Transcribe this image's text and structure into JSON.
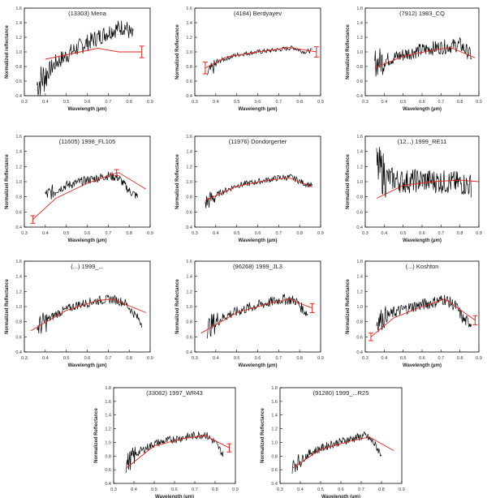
{
  "figure": {
    "ylabel_main": "Normalized Reflectance",
    "ylabel_alt": "Normalized reflectance",
    "xlabel": "Wavelength (µm)",
    "colors": {
      "spectrum": "#000000",
      "fit": "#e8261c",
      "frame": "#000000"
    }
  },
  "chart_data": [
    {
      "type": "line",
      "title": "(13303) Mena",
      "ylabel": "Normalized reflectance",
      "xlabel": "Wavelength (µm)",
      "xlim": [
        0.3,
        0.9
      ],
      "ylim": [
        0.4,
        1.6
      ],
      "xticks": [
        "0.3",
        "0.4",
        "0.5",
        "0.6",
        "0.7",
        "0.8",
        "0.9"
      ],
      "yticks": [
        "0.4",
        "0.6",
        "0.8",
        "1.0",
        "1.2",
        "1.4",
        "1.6"
      ],
      "spectrum": {
        "x0": 0.36,
        "x1": 0.82,
        "knots": [
          [
            0.36,
            0.55
          ],
          [
            0.45,
            0.85
          ],
          [
            0.55,
            1.05
          ],
          [
            0.65,
            1.2
          ],
          [
            0.72,
            1.3
          ],
          [
            0.78,
            1.35
          ],
          [
            0.82,
            1.2
          ]
        ],
        "noise": 0.12,
        "noise_blue": 0.25
      },
      "fit": [
        [
          0.4,
          0.9
        ],
        [
          0.65,
          1.05
        ],
        [
          0.75,
          1.0
        ],
        [
          0.86,
          1.0
        ]
      ],
      "error_bars": [
        {
          "x": 0.86,
          "y": 1.0,
          "err": 0.08
        }
      ]
    },
    {
      "type": "line",
      "title": "(4184) Berdyayev",
      "ylabel": "Normalized Reflectance",
      "xlabel": "Wavelength (µm)",
      "xlim": [
        0.3,
        0.9
      ],
      "ylim": [
        0.4,
        1.6
      ],
      "xticks": [
        "0.3",
        "0.4",
        "0.5",
        "0.6",
        "0.7",
        "0.8",
        "0.9"
      ],
      "yticks": [
        "0.4",
        "0.6",
        "0.8",
        "1.0",
        "1.2",
        "1.4",
        "1.6"
      ],
      "spectrum": {
        "x0": 0.36,
        "x1": 0.86,
        "knots": [
          [
            0.36,
            0.7
          ],
          [
            0.42,
            0.88
          ],
          [
            0.5,
            0.96
          ],
          [
            0.6,
            1.0
          ],
          [
            0.7,
            1.03
          ],
          [
            0.77,
            1.06
          ],
          [
            0.82,
            1.0
          ],
          [
            0.86,
            1.02
          ]
        ],
        "noise": 0.03,
        "noise_blue": 0.1
      },
      "fit": [
        [
          0.35,
          0.78
        ],
        [
          0.45,
          0.93
        ],
        [
          0.6,
          1.0
        ],
        [
          0.75,
          1.06
        ],
        [
          0.88,
          1.0
        ]
      ],
      "error_bars": [
        {
          "x": 0.35,
          "y": 0.78,
          "err": 0.08
        },
        {
          "x": 0.88,
          "y": 1.0,
          "err": 0.07
        }
      ]
    },
    {
      "type": "line",
      "title": "(7912) 1983_CQ",
      "ylabel": "Normalized Reflectance",
      "xlabel": "Wavelength (µm)",
      "xlim": [
        0.3,
        0.9
      ],
      "ylim": [
        0.4,
        1.6
      ],
      "xticks": [
        "0.3",
        "0.4",
        "0.5",
        "0.6",
        "0.7",
        "0.8",
        "0.9"
      ],
      "yticks": [
        "0.4",
        "0.6",
        "0.8",
        "1.0",
        "1.2",
        "1.4",
        "1.6"
      ],
      "spectrum": {
        "x0": 0.35,
        "x1": 0.86,
        "knots": [
          [
            0.35,
            0.85
          ],
          [
            0.45,
            0.92
          ],
          [
            0.55,
            1.0
          ],
          [
            0.65,
            1.05
          ],
          [
            0.75,
            1.08
          ],
          [
            0.8,
            1.1
          ],
          [
            0.86,
            0.95
          ]
        ],
        "noise": 0.1,
        "noise_blue": 0.2
      },
      "fit": [
        [
          0.35,
          0.78
        ],
        [
          0.5,
          0.94
        ],
        [
          0.65,
          1.02
        ],
        [
          0.75,
          1.06
        ],
        [
          0.88,
          0.92
        ]
      ],
      "error_bars": []
    },
    {
      "type": "line",
      "title": "(11605) 1998_FL105",
      "ylabel": "Normalized Reflectance",
      "xlabel": "Wavelength (µm)",
      "xlim": [
        0.3,
        0.9
      ],
      "ylim": [
        0.4,
        1.6
      ],
      "xticks": [
        "0.3",
        "0.4",
        "0.5",
        "0.6",
        "0.7",
        "0.8",
        "0.9"
      ],
      "yticks": [
        "0.4",
        "0.6",
        "0.8",
        "1.0",
        "1.2",
        "1.4",
        "1.6"
      ],
      "spectrum": {
        "x0": 0.4,
        "x1": 0.84,
        "knots": [
          [
            0.4,
            0.82
          ],
          [
            0.5,
            0.95
          ],
          [
            0.6,
            1.02
          ],
          [
            0.7,
            1.08
          ],
          [
            0.75,
            1.05
          ],
          [
            0.8,
            0.88
          ],
          [
            0.84,
            0.8
          ]
        ],
        "noise": 0.06,
        "noise_blue": 0.1
      },
      "fit": [
        [
          0.34,
          0.5
        ],
        [
          0.45,
          0.78
        ],
        [
          0.6,
          0.98
        ],
        [
          0.72,
          1.1
        ],
        [
          0.75,
          1.12
        ],
        [
          0.88,
          0.9
        ]
      ],
      "error_bars": [
        {
          "x": 0.34,
          "y": 0.5,
          "err": 0.05
        },
        {
          "x": 0.74,
          "y": 1.12,
          "err": 0.04
        }
      ]
    },
    {
      "type": "line",
      "title": "(11976) Dondorgerter",
      "ylabel": "Normalized Reflectance",
      "xlabel": "Wavelength (µm)",
      "xlim": [
        0.3,
        0.9
      ],
      "ylim": [
        0.4,
        1.6
      ],
      "xticks": [
        "0.3",
        "0.4",
        "0.5",
        "0.6",
        "0.7",
        "0.8",
        "0.9"
      ],
      "yticks": [
        "0.4",
        "0.6",
        "0.8",
        "1.0",
        "1.2",
        "1.4",
        "1.6"
      ],
      "spectrum": {
        "x0": 0.35,
        "x1": 0.86,
        "knots": [
          [
            0.35,
            0.72
          ],
          [
            0.42,
            0.85
          ],
          [
            0.5,
            0.95
          ],
          [
            0.6,
            1.0
          ],
          [
            0.7,
            1.05
          ],
          [
            0.76,
            1.06
          ],
          [
            0.82,
            0.98
          ],
          [
            0.86,
            0.95
          ]
        ],
        "noise": 0.04,
        "noise_blue": 0.12
      },
      "fit": [
        [
          0.35,
          0.75
        ],
        [
          0.5,
          0.94
        ],
        [
          0.65,
          1.02
        ],
        [
          0.75,
          1.05
        ],
        [
          0.86,
          0.93
        ]
      ],
      "error_bars": []
    },
    {
      "type": "line",
      "title": "(12...) 1999_RE11",
      "ylabel": "Normalized Reflectance",
      "xlabel": "Wavelength (µm)",
      "xlim": [
        0.3,
        0.9
      ],
      "ylim": [
        0.4,
        1.6
      ],
      "xticks": [
        "0.3",
        "0.4",
        "0.5",
        "0.6",
        "0.7",
        "0.8",
        "0.9"
      ],
      "yticks": [
        "0.4",
        "0.6",
        "0.8",
        "1.0",
        "1.2",
        "1.4",
        "1.6"
      ],
      "spectrum": {
        "x0": 0.36,
        "x1": 0.86,
        "knots": [
          [
            0.36,
            1.2
          ],
          [
            0.42,
            1.05
          ],
          [
            0.5,
            1.0
          ],
          [
            0.6,
            1.02
          ],
          [
            0.7,
            1.0
          ],
          [
            0.8,
            0.98
          ],
          [
            0.86,
            0.95
          ]
        ],
        "noise": 0.16,
        "noise_blue": 0.3
      },
      "fit": [
        [
          0.36,
          0.78
        ],
        [
          0.5,
          0.95
        ],
        [
          0.65,
          1.0
        ],
        [
          0.8,
          1.02
        ],
        [
          0.9,
          1.0
        ]
      ],
      "error_bars": []
    },
    {
      "type": "line",
      "title": "(...) 1999_...",
      "ylabel": "Normalized Reflectance",
      "xlabel": "Wavelength (µm)",
      "xlim": [
        0.3,
        0.9
      ],
      "ylim": [
        0.4,
        1.6
      ],
      "xticks": [
        "0.3",
        "0.4",
        "0.5",
        "0.6",
        "0.7",
        "0.8",
        "0.9"
      ],
      "yticks": [
        "0.4",
        "0.6",
        "0.8",
        "1.0",
        "1.2",
        "1.4",
        "1.6"
      ],
      "spectrum": {
        "x0": 0.36,
        "x1": 0.86,
        "knots": [
          [
            0.36,
            0.72
          ],
          [
            0.45,
            0.9
          ],
          [
            0.55,
            1.02
          ],
          [
            0.65,
            1.08
          ],
          [
            0.72,
            1.1
          ],
          [
            0.78,
            1.05
          ],
          [
            0.84,
            0.85
          ],
          [
            0.86,
            0.78
          ]
        ],
        "noise": 0.06,
        "noise_blue": 0.15
      },
      "fit": [
        [
          0.33,
          0.68
        ],
        [
          0.5,
          0.95
        ],
        [
          0.65,
          1.08
        ],
        [
          0.72,
          1.1
        ],
        [
          0.88,
          0.92
        ]
      ],
      "error_bars": []
    },
    {
      "type": "line",
      "title": "(96268) 1999_JL3",
      "ylabel": "Normalized Reflectance",
      "xlabel": "Wavelength (µm)",
      "xlim": [
        0.3,
        0.9
      ],
      "ylim": [
        0.4,
        1.6
      ],
      "xticks": [
        "0.3",
        "0.4",
        "0.5",
        "0.6",
        "0.7",
        "0.8",
        "0.9"
      ],
      "yticks": [
        "0.4",
        "0.6",
        "0.8",
        "1.0",
        "1.2",
        "1.4",
        "1.6"
      ],
      "spectrum": {
        "x0": 0.36,
        "x1": 0.84,
        "knots": [
          [
            0.36,
            0.72
          ],
          [
            0.45,
            0.88
          ],
          [
            0.55,
            0.98
          ],
          [
            0.65,
            1.05
          ],
          [
            0.72,
            1.1
          ],
          [
            0.78,
            1.08
          ],
          [
            0.82,
            0.95
          ],
          [
            0.84,
            0.9
          ]
        ],
        "noise": 0.07,
        "noise_blue": 0.15
      },
      "fit": [
        [
          0.33,
          0.65
        ],
        [
          0.5,
          0.92
        ],
        [
          0.65,
          1.04
        ],
        [
          0.75,
          1.1
        ],
        [
          0.86,
          0.98
        ]
      ],
      "error_bars": [
        {
          "x": 0.86,
          "y": 0.98,
          "err": 0.06
        }
      ]
    },
    {
      "type": "line",
      "title": "(...) Koshton",
      "ylabel": "Normalized Reflectance",
      "xlabel": "Wavelength (µm)",
      "xlim": [
        0.3,
        0.9
      ],
      "ylim": [
        0.4,
        1.6
      ],
      "xticks": [
        "0.3",
        "0.4",
        "0.5",
        "0.6",
        "0.7",
        "0.8",
        "0.9"
      ],
      "yticks": [
        "0.4",
        "0.6",
        "0.8",
        "1.0",
        "1.2",
        "1.4",
        "1.6"
      ],
      "spectrum": {
        "x0": 0.36,
        "x1": 0.86,
        "knots": [
          [
            0.36,
            0.8
          ],
          [
            0.45,
            0.92
          ],
          [
            0.55,
            1.0
          ],
          [
            0.65,
            1.05
          ],
          [
            0.72,
            1.1
          ],
          [
            0.78,
            1.0
          ],
          [
            0.82,
            0.82
          ],
          [
            0.86,
            0.78
          ]
        ],
        "noise": 0.08,
        "noise_blue": 0.15
      },
      "fit": [
        [
          0.33,
          0.6
        ],
        [
          0.45,
          0.85
        ],
        [
          0.6,
          1.0
        ],
        [
          0.72,
          1.1
        ],
        [
          0.88,
          0.82
        ]
      ],
      "error_bars": [
        {
          "x": 0.33,
          "y": 0.6,
          "err": 0.05
        },
        {
          "x": 0.88,
          "y": 0.82,
          "err": 0.06
        }
      ]
    },
    {
      "type": "line",
      "title": "(33082) 1997_WR43",
      "ylabel": "Normalized Reflectance",
      "xlabel": "Wavelength (µm)",
      "xlim": [
        0.3,
        0.9
      ],
      "ylim": [
        0.4,
        1.8
      ],
      "xticks": [
        "0.3",
        "0.4",
        "0.5",
        "0.6",
        "0.7",
        "0.8",
        "0.9"
      ],
      "yticks": [
        "0.4",
        "0.6",
        "0.8",
        "1.0",
        "1.2",
        "1.4",
        "1.6",
        "1.8"
      ],
      "spectrum": {
        "x0": 0.36,
        "x1": 0.84,
        "knots": [
          [
            0.36,
            0.68
          ],
          [
            0.42,
            0.85
          ],
          [
            0.5,
            0.98
          ],
          [
            0.6,
            1.05
          ],
          [
            0.7,
            1.1
          ],
          [
            0.75,
            1.12
          ],
          [
            0.8,
            1.0
          ],
          [
            0.84,
            0.82
          ]
        ],
        "noise": 0.06,
        "noise_blue": 0.15
      },
      "fit": [
        [
          0.36,
          0.62
        ],
        [
          0.5,
          0.95
        ],
        [
          0.65,
          1.06
        ],
        [
          0.75,
          1.1
        ],
        [
          0.87,
          0.92
        ]
      ],
      "error_bars": [
        {
          "x": 0.87,
          "y": 0.92,
          "err": 0.06
        }
      ]
    },
    {
      "type": "line",
      "title": "(91280) 1999_...R25",
      "ylabel": "Normalized Reflectance",
      "xlabel": "Wavelength (µm)",
      "xlim": [
        0.3,
        0.9
      ],
      "ylim": [
        0.4,
        1.8
      ],
      "xticks": [
        "0.3",
        "0.4",
        "0.5",
        "0.6",
        "0.7",
        "0.8",
        "0.9"
      ],
      "yticks": [
        "0.4",
        "0.6",
        "0.8",
        "1.0",
        "1.2",
        "1.4",
        "1.6",
        "1.8"
      ],
      "spectrum": {
        "x0": 0.36,
        "x1": 0.8,
        "knots": [
          [
            0.36,
            0.65
          ],
          [
            0.45,
            0.85
          ],
          [
            0.55,
            0.97
          ],
          [
            0.65,
            1.05
          ],
          [
            0.72,
            1.1
          ],
          [
            0.76,
            1.0
          ],
          [
            0.8,
            0.82
          ]
        ],
        "noise": 0.06,
        "noise_blue": 0.12
      },
      "fit": [
        [
          0.36,
          0.62
        ],
        [
          0.5,
          0.9
        ],
        [
          0.65,
          1.02
        ],
        [
          0.74,
          1.08
        ],
        [
          0.86,
          0.88
        ]
      ],
      "error_bars": []
    }
  ]
}
